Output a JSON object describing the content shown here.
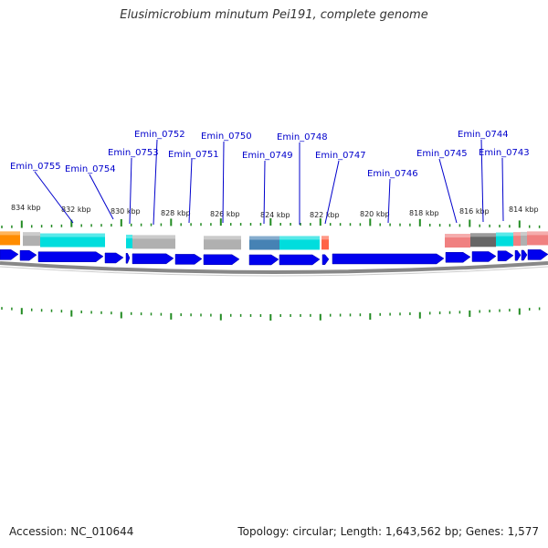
{
  "header": {
    "title": "Elusimicrobium minutum Pei191, complete genome"
  },
  "footer": {
    "accession": "Accession: NC_010644",
    "summary": "Topology: circular; Length: 1,643,562 bp; Genes: 1,577"
  },
  "gene_labels": [
    "Emin_0755",
    "Emin_0754",
    "Emin_0753",
    "Emin_0752",
    "Emin_0751",
    "Emin_0750",
    "Emin_0749",
    "Emin_0748",
    "Emin_0747",
    "Emin_0746",
    "Emin_0745",
    "Emin_0744",
    "Emin_0743"
  ],
  "position_labels": [
    "834 kbp",
    "832 kbp",
    "830 kbp",
    "828 kbp",
    "826 kbp",
    "824 kbp",
    "822 kbp",
    "820 kbp",
    "818 kbp",
    "816 kbp",
    "814 kbp"
  ],
  "colors": {
    "gene_label": "#0000cc",
    "strand_arrow": "#0000ee",
    "tick": "#228b22",
    "backbone": "#888888",
    "feature_cyan": "#00dddd",
    "feature_orange": "#ff8c00",
    "feature_gray": "#b0b0b0",
    "feature_steel": "#4682b4",
    "feature_salmon": "#f08080",
    "feature_tomato": "#ff6347",
    "feature_dark": "#666666"
  }
}
